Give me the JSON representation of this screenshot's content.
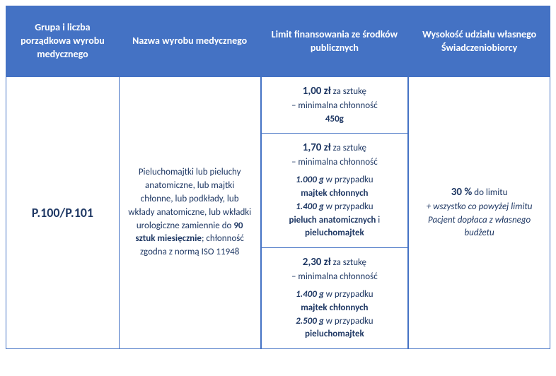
{
  "headers": {
    "col1": "Grupa i liczba porządkowa wyrobu medycznego",
    "col2": "Nazwa wyrobu medycznego",
    "col3": "Limit finansowania ze środków publicznych",
    "col4": "Wysokość udziału własnego Świadczeniobiorcy"
  },
  "body": {
    "group_code": "P.100/P.101",
    "product_name_pre": "Pieluchomajtki lub pieluchy anatomiczne, lub majtki chłonne, lub podkłady, lub wkłady anatomiczne, lub wkładki urologiczne zamiennie do ",
    "product_name_bold": "90 sztuk miesięcznie",
    "product_name_post": "; chłonność zgodna z normą ISO 11948"
  },
  "limits": {
    "row1": {
      "price": "1,00 zł",
      "unit": " za sztukę",
      "desc": "– minimalna chłonność",
      "weight": "450g"
    },
    "row2": {
      "price": "1,70 zł",
      "unit": " za sztukę",
      "desc": "– minimalna chłonność",
      "w1": "1.000 g",
      "t1": " w przypadku ",
      "b1": "majtek chłonnych",
      "w2": "1.400 g",
      "t2": " w przypadku ",
      "b2": "pieluch anatomicznych",
      "and": " i ",
      "b3": "pieluchomajtek"
    },
    "row3": {
      "price": "2,30 zł",
      "unit": " za sztukę",
      "desc": "– minimalna chłonność",
      "w1": "1.400 g",
      "t1": " w przypadku ",
      "b1": "majtek chłonnych",
      "w2": "2.500 g",
      "t2": " w przypadku ",
      "b2": "pieluchomajtek"
    }
  },
  "share": {
    "percent": "30 %",
    "suffix": " do limitu",
    "note": "+ wszystko co powyżej limitu Pacjent dopłaca z własnego budżetu"
  }
}
